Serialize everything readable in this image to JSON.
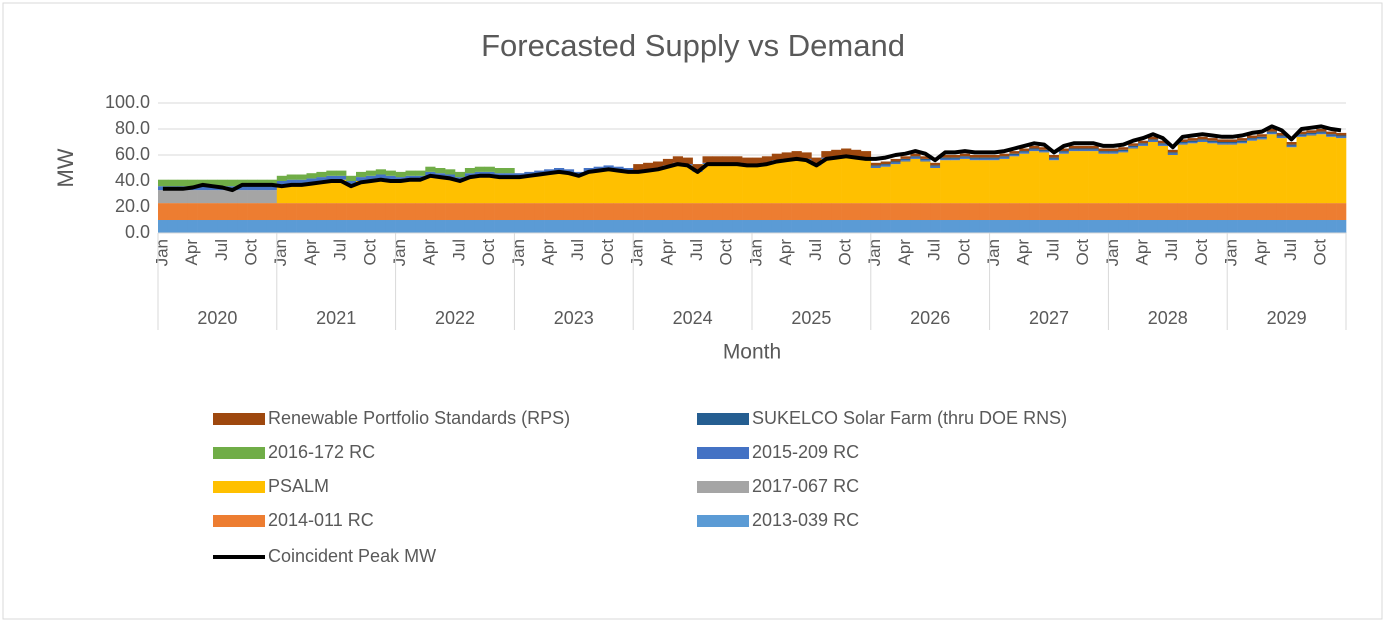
{
  "chart_data": {
    "type": "stacked_bar",
    "title": "Forecasted Supply vs Demand",
    "y_label": "MW",
    "x_label": "Month",
    "ylim": [
      0,
      100
    ],
    "yticks": [
      {
        "value": 0,
        "label": "0.0"
      },
      {
        "value": 20,
        "label": "20.0"
      },
      {
        "value": 40,
        "label": "40.0"
      },
      {
        "value": 60,
        "label": "60.0"
      },
      {
        "value": 80,
        "label": "80.0"
      },
      {
        "value": 100,
        "label": "100.0"
      }
    ],
    "grid": true,
    "legend": "bottom",
    "years": [
      "2020",
      "2021",
      "2022",
      "2023",
      "2024",
      "2025",
      "2026",
      "2027",
      "2028",
      "2029"
    ],
    "categories": [
      "Jan",
      null,
      null,
      "Apr",
      null,
      null,
      "Jul",
      null,
      null,
      "Oct",
      null,
      null,
      "Jan",
      null,
      null,
      "Apr",
      null,
      null,
      "Jul",
      null,
      null,
      "Oct",
      null,
      null,
      "Jan",
      null,
      null,
      "Apr",
      null,
      null,
      "Jul",
      null,
      null,
      "Oct",
      null,
      null,
      "Jan",
      null,
      null,
      "Apr",
      null,
      null,
      "Jul",
      null,
      null,
      "Oct",
      null,
      null,
      "Jan",
      null,
      null,
      "Apr",
      null,
      null,
      "Jul",
      null,
      null,
      "Oct",
      null,
      null,
      "Jan",
      null,
      null,
      "Apr",
      null,
      null,
      "Jul",
      null,
      null,
      "Oct",
      null,
      null,
      "Jan",
      null,
      null,
      "Apr",
      null,
      null,
      "Jul",
      null,
      null,
      "Oct",
      null,
      null,
      "Jan",
      null,
      null,
      "Apr",
      null,
      null,
      "Jul",
      null,
      null,
      "Oct",
      null,
      null,
      "Jan",
      null,
      null,
      "Apr",
      null,
      null,
      "Jul",
      null,
      null,
      "Oct",
      null,
      null,
      "Jan",
      null,
      null,
      "Apr",
      null,
      null,
      "Jul",
      null,
      null,
      "Oct",
      null,
      null
    ],
    "series": [
      {
        "name": "Renewable Portfolio Standards (RPS)",
        "color": "#9e480e",
        "values": [
          0,
          0,
          0,
          0,
          0,
          0,
          0,
          0,
          0,
          0,
          0,
          0,
          0,
          0,
          0,
          0,
          0,
          0,
          0,
          0,
          0,
          0,
          0,
          0,
          0,
          0,
          0,
          0,
          0,
          0,
          0,
          0,
          0,
          0,
          0,
          0,
          0,
          0,
          0,
          0,
          0,
          0,
          0,
          0,
          0,
          0,
          0,
          0,
          5,
          5,
          5,
          5,
          5,
          5,
          5,
          5,
          5,
          5,
          5,
          5,
          5,
          5,
          5,
          5,
          5,
          5,
          5,
          5,
          5,
          5,
          5,
          5,
          2,
          2,
          2,
          2,
          2,
          2,
          2,
          2,
          2,
          2,
          2,
          2,
          2,
          2,
          2,
          2,
          2,
          2,
          2,
          2,
          2,
          2,
          2,
          2,
          2,
          2,
          2,
          2,
          2,
          2,
          2,
          2,
          2,
          2,
          2,
          2,
          2,
          2,
          2,
          2,
          2,
          2,
          2,
          2,
          2,
          2,
          2,
          2
        ]
      },
      {
        "name": "SUKELCO Solar Farm (thru DOE RNS)",
        "color": "#255e91",
        "values": [
          0,
          0,
          0,
          0,
          0,
          0,
          0,
          0,
          0,
          0,
          0,
          0,
          0,
          0,
          0,
          0,
          0,
          0,
          0,
          0,
          0,
          0,
          0,
          0,
          0,
          0,
          0,
          0,
          0,
          0,
          0,
          0,
          0,
          0,
          0,
          0,
          0,
          0,
          0,
          0,
          0,
          0,
          0,
          0,
          0,
          0,
          0,
          0,
          0,
          0,
          0,
          0,
          0,
          0,
          0,
          0,
          0,
          0,
          0,
          0,
          0,
          0,
          0,
          0,
          0,
          0,
          0,
          0,
          0,
          0,
          0,
          0,
          1,
          1,
          1,
          1,
          1,
          1,
          1,
          1,
          1,
          1,
          1,
          1,
          1,
          1,
          1,
          1,
          1,
          1,
          1,
          1,
          1,
          1,
          1,
          1,
          1,
          1,
          1,
          1,
          1,
          1,
          1,
          1,
          1,
          1,
          1,
          1,
          1,
          1,
          1,
          1,
          1,
          1,
          1,
          1,
          1,
          1,
          1,
          1
        ]
      },
      {
        "name": "2016-172 RC",
        "color": "#70ad47",
        "values": [
          5,
          5,
          5,
          5,
          5,
          5,
          5,
          5,
          5,
          5,
          5,
          5,
          4,
          4,
          4,
          4,
          4,
          4,
          4,
          4,
          4,
          4,
          4,
          4,
          4,
          4,
          4,
          4,
          4,
          4,
          4,
          4,
          4,
          4,
          4,
          4,
          0,
          0,
          0,
          0,
          0,
          0,
          0,
          0,
          0,
          0,
          0,
          0,
          0,
          0,
          0,
          0,
          0,
          0,
          0,
          0,
          0,
          0,
          0,
          0,
          0,
          0,
          0,
          0,
          0,
          0,
          0,
          0,
          0,
          0,
          0,
          0,
          0,
          0,
          0,
          0,
          0,
          0,
          0,
          0,
          0,
          0,
          0,
          0,
          0,
          0,
          0,
          0,
          0,
          0,
          0,
          0,
          0,
          0,
          0,
          0,
          0,
          0,
          0,
          0,
          0,
          0,
          0,
          0,
          0,
          0,
          0,
          0,
          0,
          0,
          0,
          0,
          0,
          0,
          0,
          0,
          0,
          0,
          0,
          0
        ]
      },
      {
        "name": "2015-209 RC",
        "color": "#4472c4",
        "values": [
          3,
          3,
          3,
          3,
          3,
          3,
          3,
          3,
          3,
          3,
          3,
          3,
          3,
          3,
          3,
          3,
          3,
          3,
          3,
          3,
          3,
          3,
          3,
          3,
          3,
          3,
          3,
          3,
          3,
          3,
          3,
          3,
          3,
          3,
          3,
          3,
          3,
          3,
          3,
          3,
          3,
          3,
          3,
          3,
          3,
          3,
          3,
          3,
          1,
          1,
          1,
          1,
          1,
          1,
          1,
          1,
          1,
          1,
          1,
          1,
          1,
          1,
          1,
          1,
          1,
          1,
          1,
          1,
          1,
          1,
          1,
          1,
          1,
          1,
          1,
          1,
          1,
          1,
          1,
          1,
          1,
          1,
          1,
          1,
          1,
          1,
          1,
          1,
          1,
          1,
          1,
          1,
          1,
          1,
          1,
          1,
          1,
          1,
          1,
          1,
          1,
          1,
          1,
          1,
          1,
          1,
          1,
          1,
          1,
          1,
          1,
          1,
          1,
          1,
          1,
          1,
          1,
          1,
          1,
          1
        ]
      },
      {
        "name": "PSALM",
        "color": "#ffc000",
        "values": [
          0,
          0,
          0,
          0,
          0,
          0,
          0,
          0,
          0,
          0,
          0,
          0,
          14,
          15,
          15,
          16,
          17,
          18,
          18,
          14,
          17,
          18,
          19,
          18,
          17,
          18,
          18,
          21,
          20,
          19,
          17,
          20,
          21,
          21,
          20,
          20,
          20,
          21,
          22,
          23,
          24,
          23,
          21,
          24,
          25,
          26,
          25,
          24,
          24,
          25,
          26,
          28,
          30,
          29,
          24,
          30,
          30,
          30,
          30,
          29,
          29,
          30,
          32,
          33,
          34,
          33,
          29,
          34,
          35,
          36,
          35,
          34,
          27,
          28,
          30,
          32,
          34,
          32,
          27,
          33,
          33,
          34,
          33,
          33,
          33,
          34,
          36,
          38,
          40,
          39,
          33,
          38,
          40,
          40,
          40,
          38,
          38,
          39,
          42,
          44,
          47,
          44,
          37,
          45,
          46,
          47,
          46,
          45,
          45,
          46,
          48,
          49,
          53,
          50,
          43,
          51,
          52,
          53,
          51,
          50
        ]
      },
      {
        "name": "2017-067 RC",
        "color": "#a5a5a5",
        "values": [
          10,
          10,
          10,
          10,
          10,
          10,
          10,
          10,
          10,
          10,
          10,
          10,
          0,
          0,
          0,
          0,
          0,
          0,
          0,
          0,
          0,
          0,
          0,
          0,
          0,
          0,
          0,
          0,
          0,
          0,
          0,
          0,
          0,
          0,
          0,
          0,
          0,
          0,
          0,
          0,
          0,
          0,
          0,
          0,
          0,
          0,
          0,
          0,
          0,
          0,
          0,
          0,
          0,
          0,
          0,
          0,
          0,
          0,
          0,
          0,
          0,
          0,
          0,
          0,
          0,
          0,
          0,
          0,
          0,
          0,
          0,
          0,
          0,
          0,
          0,
          0,
          0,
          0,
          0,
          0,
          0,
          0,
          0,
          0,
          0,
          0,
          0,
          0,
          0,
          0,
          0,
          0,
          0,
          0,
          0,
          0,
          0,
          0,
          0,
          0,
          0,
          0,
          0,
          0,
          0,
          0,
          0,
          0,
          0,
          0,
          0,
          0,
          0,
          0,
          0,
          0,
          0,
          0,
          0,
          0
        ]
      },
      {
        "name": "2014-011 RC",
        "color": "#ed7d31",
        "values": [
          13,
          13,
          13,
          13,
          13,
          13,
          13,
          13,
          13,
          13,
          13,
          13,
          13,
          13,
          13,
          13,
          13,
          13,
          13,
          13,
          13,
          13,
          13,
          13,
          13,
          13,
          13,
          13,
          13,
          13,
          13,
          13,
          13,
          13,
          13,
          13,
          13,
          13,
          13,
          13,
          13,
          13,
          13,
          13,
          13,
          13,
          13,
          13,
          13,
          13,
          13,
          13,
          13,
          13,
          13,
          13,
          13,
          13,
          13,
          13,
          13,
          13,
          13,
          13,
          13,
          13,
          13,
          13,
          13,
          13,
          13,
          13,
          13,
          13,
          13,
          13,
          13,
          13,
          13,
          13,
          13,
          13,
          13,
          13,
          13,
          13,
          13,
          13,
          13,
          13,
          13,
          13,
          13,
          13,
          13,
          13,
          13,
          13,
          13,
          13,
          13,
          13,
          13,
          13,
          13,
          13,
          13,
          13,
          13,
          13,
          13,
          13,
          13,
          13,
          13,
          13,
          13,
          13,
          13,
          13
        ]
      },
      {
        "name": "2013-039 RC",
        "color": "#5b9bd5",
        "values": [
          10,
          10,
          10,
          10,
          10,
          10,
          10,
          10,
          10,
          10,
          10,
          10,
          10,
          10,
          10,
          10,
          10,
          10,
          10,
          10,
          10,
          10,
          10,
          10,
          10,
          10,
          10,
          10,
          10,
          10,
          10,
          10,
          10,
          10,
          10,
          10,
          10,
          10,
          10,
          10,
          10,
          10,
          10,
          10,
          10,
          10,
          10,
          10,
          10,
          10,
          10,
          10,
          10,
          10,
          10,
          10,
          10,
          10,
          10,
          10,
          10,
          10,
          10,
          10,
          10,
          10,
          10,
          10,
          10,
          10,
          10,
          10,
          10,
          10,
          10,
          10,
          10,
          10,
          10,
          10,
          10,
          10,
          10,
          10,
          10,
          10,
          10,
          10,
          10,
          10,
          10,
          10,
          10,
          10,
          10,
          10,
          10,
          10,
          10,
          10,
          10,
          10,
          10,
          10,
          10,
          10,
          10,
          10,
          10,
          10,
          10,
          10,
          10,
          10,
          10,
          10,
          10,
          10,
          10,
          10
        ]
      },
      {
        "name": "Coincident Peak MW",
        "color": "#000000",
        "type": "line",
        "values": [
          34,
          34,
          34,
          35,
          37,
          36,
          35,
          33,
          37,
          37,
          37,
          37,
          36,
          37,
          37,
          38,
          39,
          40,
          40,
          36,
          39,
          40,
          41,
          40,
          40,
          41,
          41,
          44,
          43,
          42,
          40,
          43,
          44,
          44,
          43,
          43,
          43,
          44,
          45,
          46,
          47,
          46,
          44,
          47,
          48,
          49,
          48,
          47,
          47,
          48,
          49,
          51,
          53,
          52,
          47,
          53,
          53,
          53,
          53,
          52,
          52,
          53,
          55,
          56,
          57,
          56,
          52,
          57,
          58,
          59,
          58,
          57,
          57,
          58,
          60,
          61,
          63,
          61,
          56,
          62,
          62,
          63,
          62,
          62,
          62,
          63,
          65,
          67,
          69,
          68,
          62,
          67,
          69,
          69,
          69,
          67,
          67,
          68,
          71,
          73,
          76,
          73,
          66,
          74,
          75,
          76,
          75,
          74,
          74,
          75,
          77,
          78,
          82,
          79,
          72,
          80,
          81,
          82,
          80,
          79
        ]
      }
    ]
  }
}
